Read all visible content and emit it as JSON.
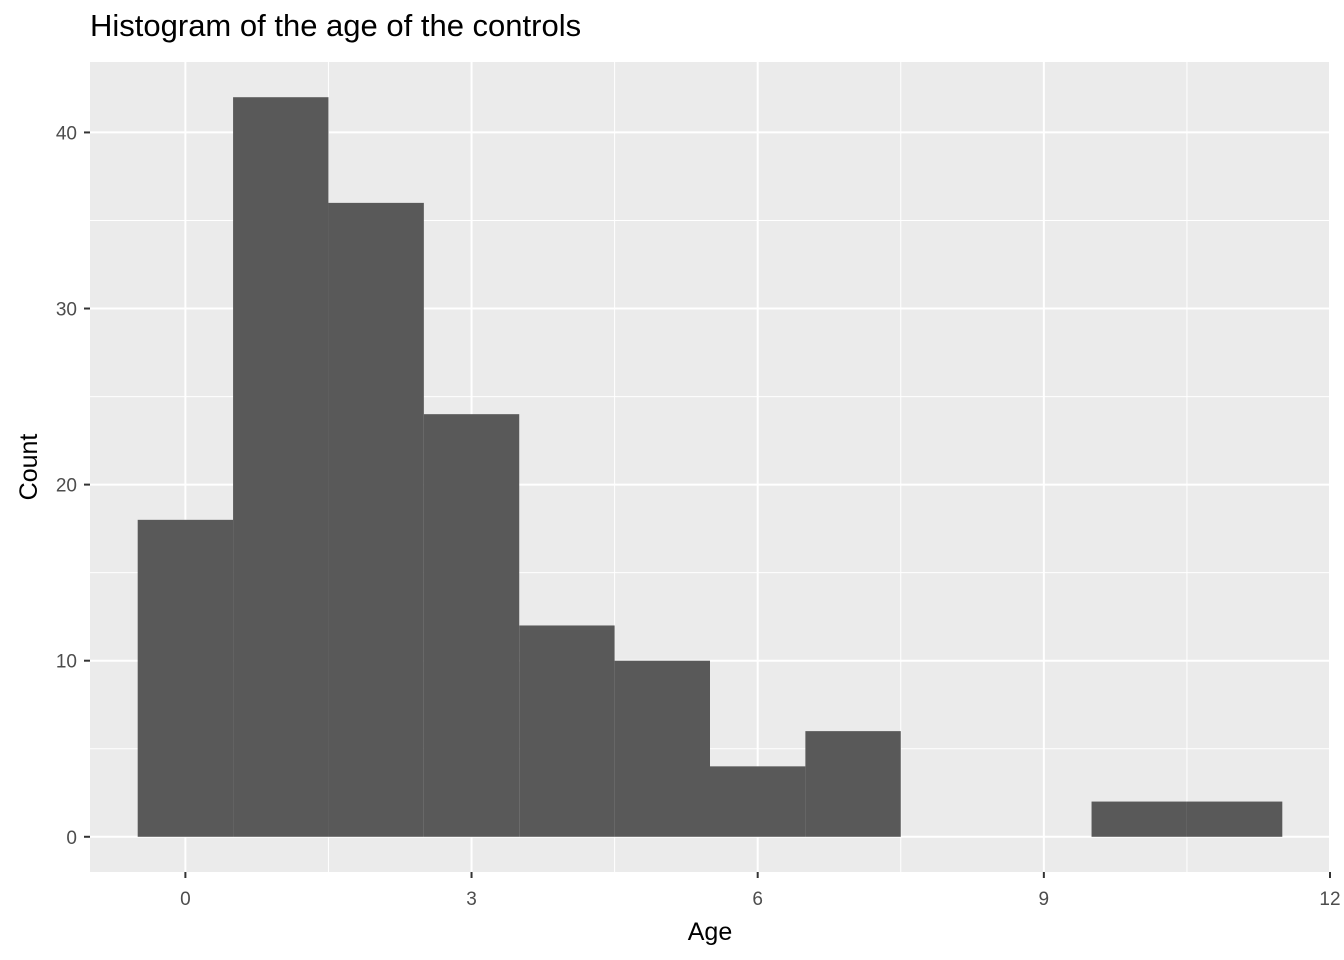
{
  "chart_data": {
    "type": "bar",
    "title": "Histogram of the age of the controls",
    "xlabel": "Age",
    "ylabel": "Count",
    "xlim": [
      -1,
      12
    ],
    "ylim": [
      -2,
      44
    ],
    "x_ticks": [
      0,
      3,
      6,
      9,
      12
    ],
    "y_ticks": [
      0,
      10,
      20,
      30,
      40
    ],
    "x_tick_labels": [
      "0",
      "3",
      "6",
      "9",
      "12"
    ],
    "y_tick_labels": [
      "0",
      "10",
      "20",
      "30",
      "40"
    ],
    "bin_width": 1,
    "bins": [
      {
        "x": 0,
        "count": 18
      },
      {
        "x": 1,
        "count": 42
      },
      {
        "x": 2,
        "count": 36
      },
      {
        "x": 3,
        "count": 24
      },
      {
        "x": 4,
        "count": 12
      },
      {
        "x": 5,
        "count": 10
      },
      {
        "x": 6,
        "count": 4
      },
      {
        "x": 7,
        "count": 6
      },
      {
        "x": 8,
        "count": 0
      },
      {
        "x": 9,
        "count": 0
      },
      {
        "x": 10,
        "count": 2
      },
      {
        "x": 11,
        "count": 2
      }
    ],
    "grid": true,
    "colors": {
      "panel_background": "#ebebeb",
      "grid_line": "#ffffff",
      "bar_fill": "#595959",
      "tick_label": "#4d4d4d"
    }
  }
}
